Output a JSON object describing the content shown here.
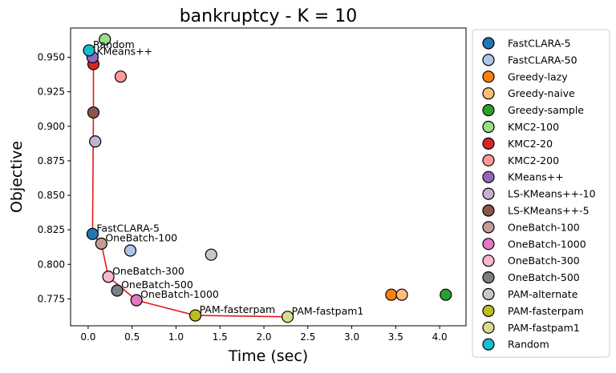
{
  "chart_data": {
    "type": "scatter",
    "title": "bankruptcy - K = 10",
    "xlabel": "Time (sec)",
    "ylabel": "Objective",
    "xlim": [
      -0.2,
      4.3
    ],
    "ylim": [
      0.7555,
      0.9712
    ],
    "xticks": [
      0.0,
      0.5,
      1.0,
      1.5,
      2.0,
      2.5,
      3.0,
      3.5,
      4.0
    ],
    "xtick_labels": [
      "0.0",
      "0.5",
      "1.0",
      "1.5",
      "2.0",
      "2.5",
      "3.0",
      "3.5",
      "4.0"
    ],
    "yticks": [
      0.775,
      0.8,
      0.825,
      0.85,
      0.875,
      0.9,
      0.925,
      0.95
    ],
    "ytick_labels": [
      "0.775",
      "0.800",
      "0.825",
      "0.850",
      "0.875",
      "0.900",
      "0.925",
      "0.950"
    ],
    "grid": false,
    "legend_position": "outside-right",
    "series": [
      {
        "name": "FastCLARA-5",
        "color": "#1f77b4",
        "x": 0.05,
        "y": 0.822
      },
      {
        "name": "FastCLARA-50",
        "color": "#aec7e8",
        "x": 0.48,
        "y": 0.81
      },
      {
        "name": "Greedy-lazy",
        "color": "#ff7f0e",
        "x": 3.45,
        "y": 0.778
      },
      {
        "name": "Greedy-naive",
        "color": "#ffbb78",
        "x": 3.57,
        "y": 0.778
      },
      {
        "name": "Greedy-sample",
        "color": "#2ca02c",
        "x": 4.07,
        "y": 0.778
      },
      {
        "name": "KMC2-100",
        "color": "#98df8a",
        "x": 0.19,
        "y": 0.963
      },
      {
        "name": "KMC2-20",
        "color": "#d62728",
        "x": 0.06,
        "y": 0.945
      },
      {
        "name": "KMC2-200",
        "color": "#ff9896",
        "x": 0.37,
        "y": 0.936
      },
      {
        "name": "KMeans++",
        "color": "#9467bd",
        "x": 0.05,
        "y": 0.95
      },
      {
        "name": "LS-KMeans++-10",
        "color": "#c5b0d5",
        "x": 0.08,
        "y": 0.889
      },
      {
        "name": "LS-KMeans++-5",
        "color": "#8c564b",
        "x": 0.06,
        "y": 0.91
      },
      {
        "name": "OneBatch-100",
        "color": "#c49c94",
        "x": 0.15,
        "y": 0.815
      },
      {
        "name": "OneBatch-1000",
        "color": "#e377c2",
        "x": 0.55,
        "y": 0.774
      },
      {
        "name": "OneBatch-300",
        "color": "#f7b6d2",
        "x": 0.23,
        "y": 0.791
      },
      {
        "name": "OneBatch-500",
        "color": "#7f7f7f",
        "x": 0.33,
        "y": 0.781
      },
      {
        "name": "PAM-alternate",
        "color": "#c7c7c7",
        "x": 1.4,
        "y": 0.807
      },
      {
        "name": "PAM-fasterpam",
        "color": "#bcbd22",
        "x": 1.22,
        "y": 0.763
      },
      {
        "name": "PAM-fastpam1",
        "color": "#dbdb8d",
        "x": 2.27,
        "y": 0.762
      },
      {
        "name": "Random",
        "color": "#17becf",
        "x": 0.01,
        "y": 0.955
      }
    ],
    "annotations": [
      {
        "text": "Random",
        "series": "Random"
      },
      {
        "text": "KMeans++",
        "series": "KMeans++"
      },
      {
        "text": "FastCLARA-5",
        "series": "FastCLARA-5"
      },
      {
        "text": "OneBatch-100",
        "series": "OneBatch-100"
      },
      {
        "text": "OneBatch-300",
        "series": "OneBatch-300"
      },
      {
        "text": "OneBatch-500",
        "series": "OneBatch-500"
      },
      {
        "text": "OneBatch-1000",
        "series": "OneBatch-1000"
      },
      {
        "text": "PAM-fasterpam",
        "series": "PAM-fasterpam"
      },
      {
        "text": "PAM-fastpam1",
        "series": "PAM-fastpam1"
      }
    ],
    "pareto_front": {
      "color": "#e41a1c",
      "points": [
        "Random",
        "KMeans++",
        "KMC2-20",
        "LS-KMeans++-5",
        "FastCLARA-5",
        "OneBatch-100",
        "OneBatch-300",
        "OneBatch-1000",
        "PAM-fasterpam",
        "PAM-fastpam1"
      ]
    }
  }
}
